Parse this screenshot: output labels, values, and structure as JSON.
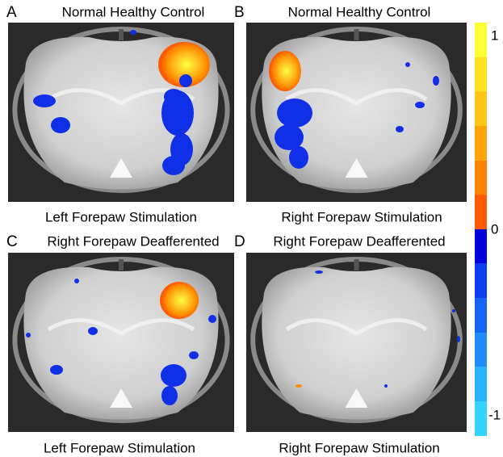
{
  "panels": [
    {
      "letter": "A",
      "title": "Normal Healthy Control",
      "caption": "Left Forepaw Stimulation"
    },
    {
      "letter": "B",
      "title": "Normal Healthy Control",
      "caption": "Right Forepaw Stimulation"
    },
    {
      "letter": "C",
      "title": "Right Forepaw Deafferented",
      "caption": "Left Forepaw Stimulation"
    },
    {
      "letter": "D",
      "title": "Right Forepaw Deafferented",
      "caption": "Right Forepaw Stimulation"
    }
  ],
  "colorbar": {
    "ticks": [
      "1",
      "0",
      "-1"
    ]
  }
}
